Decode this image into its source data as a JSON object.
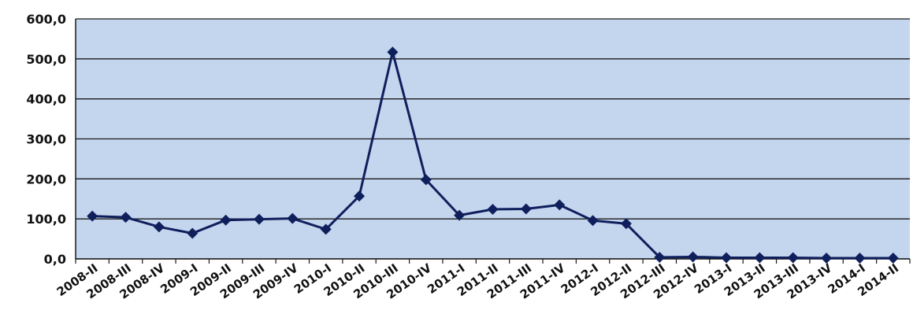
{
  "chart_data": {
    "type": "line",
    "title": "",
    "xlabel": "",
    "ylabel": "",
    "ylim": [
      0,
      600
    ],
    "yticks": [
      "0,0",
      "100,0",
      "200,0",
      "300,0",
      "400,0",
      "500,0",
      "600,0"
    ],
    "grid": true,
    "legend": "none",
    "categories": [
      "2008-II",
      "2008-III",
      "2008-IV",
      "2009-I",
      "2009-II",
      "2009-III",
      "2009-IV",
      "2010-I",
      "2010-II",
      "2010-III",
      "2010-IV",
      "2011-I",
      "2011-II",
      "2011-III",
      "2011-IV",
      "2012-I",
      "2012-II",
      "2012-III",
      "2012-IV",
      "2013-I",
      "2013-II",
      "2013-III",
      "2013-IV",
      "2014-I",
      "2014-II"
    ],
    "series": [
      {
        "values": [
          107,
          104,
          80,
          64,
          97,
          99,
          101,
          74,
          157,
          517,
          198,
          109,
          124,
          125,
          135,
          96,
          88,
          4,
          5,
          3,
          3,
          3,
          2,
          2,
          2
        ]
      }
    ],
    "colors": {
      "plot_background": "#c4d5ee",
      "line": "#0f1f5c",
      "gridline": "#1a1a1a",
      "text": "#111111"
    }
  }
}
